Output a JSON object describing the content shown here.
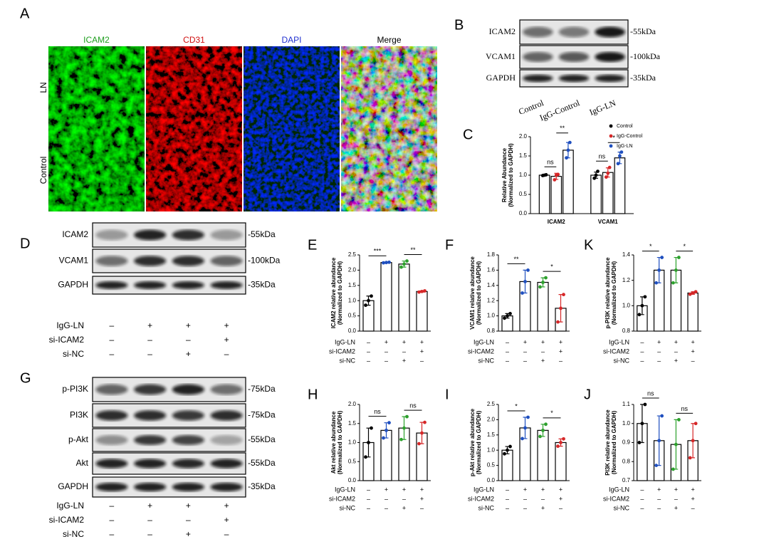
{
  "panels": {
    "A": {
      "label": "A",
      "columns": [
        "ICAM2",
        "CD31",
        "DAPI",
        "Merge"
      ],
      "rows": [
        "LN",
        "Control"
      ]
    },
    "B": {
      "label": "B",
      "bands": [
        {
          "name": "ICAM2",
          "size": "-55kDa"
        },
        {
          "name": "VCAM1",
          "size": "-100kDa"
        },
        {
          "name": "GAPDH",
          "size": "-35kDa"
        }
      ],
      "lanes": [
        "Control",
        "IgG-Control",
        "IgG-LN"
      ]
    },
    "D": {
      "label": "D",
      "bands": [
        {
          "name": "ICAM2",
          "size": "-55kDa"
        },
        {
          "name": "VCAM1",
          "size": "-100kDa"
        },
        {
          "name": "GAPDH",
          "size": "-35kDa"
        }
      ],
      "conditions": [
        {
          "label": "IgG-LN",
          "signs": [
            "–",
            "+",
            "+",
            "+"
          ]
        },
        {
          "label": "si-ICAM2",
          "signs": [
            "–",
            "–",
            "–",
            "+"
          ]
        },
        {
          "label": "si-NC",
          "signs": [
            "–",
            "–",
            "+",
            "–"
          ]
        }
      ]
    },
    "G": {
      "label": "G",
      "bands": [
        {
          "name": "p-PI3K",
          "size": "-75kDa"
        },
        {
          "name": "PI3K",
          "size": "-75kDa"
        },
        {
          "name": "p-Akt",
          "size": "-55kDa"
        },
        {
          "name": "Akt",
          "size": "-55kDa"
        },
        {
          "name": "GAPDH",
          "size": "-35kDa"
        }
      ],
      "conditions": [
        {
          "label": "IgG-LN",
          "signs": [
            "–",
            "+",
            "+",
            "+"
          ]
        },
        {
          "label": "si-ICAM2",
          "signs": [
            "–",
            "–",
            "–",
            "+"
          ]
        },
        {
          "label": "si-NC",
          "signs": [
            "–",
            "–",
            "+",
            "–"
          ]
        }
      ]
    }
  },
  "chart_data": [
    {
      "type": "grouped-bar",
      "panel": "C",
      "ylabel": [
        "Relative Abundance",
        "(Normalized to GAPDH)"
      ],
      "categories": [
        "ICAM2",
        "VCAM1"
      ],
      "series": [
        {
          "name": "Control",
          "color": "#000000",
          "values": [
            1.0,
            1.0
          ],
          "errors": [
            0.02,
            0.08
          ],
          "points": [
            [
              0.99,
              1.0,
              1.01
            ],
            [
              0.92,
              1.0,
              1.1
            ]
          ]
        },
        {
          "name": "IgG-Control",
          "color": "#d62728",
          "values": [
            0.97,
            1.07
          ],
          "errors": [
            0.08,
            0.12
          ],
          "points": [
            [
              0.88,
              1.0,
              1.02
            ],
            [
              0.95,
              1.05,
              1.2
            ]
          ]
        },
        {
          "name": "IgG-LN",
          "color": "#1f4fbf",
          "values": [
            1.65,
            1.45
          ],
          "errors": [
            0.2,
            0.15
          ],
          "points": [
            [
              1.45,
              1.65,
              1.85
            ],
            [
              1.3,
              1.5,
              1.6
            ]
          ]
        }
      ],
      "significance": [
        [
          "ns",
          "**"
        ],
        [
          "ns",
          "*"
        ]
      ],
      "legend": "upper right",
      "ylim": [
        0,
        2
      ],
      "yticks": [
        {
          "value": 0,
          "label": "0.0"
        },
        0.5,
        {
          "value": 1,
          "label": "1.0"
        },
        1.5,
        {
          "value": 2,
          "label": "2.0"
        }
      ]
    },
    {
      "type": "bar",
      "panel": "E",
      "ylabel": [
        "ICAM2 relative abundance",
        "(Normalized to GAPDH)"
      ],
      "colors": [
        "#000000",
        "#1f4fbf",
        "#2ca02c",
        "#d62728"
      ],
      "values": [
        1.0,
        2.25,
        2.2,
        1.3
      ],
      "errors": [
        0.15,
        0.01,
        0.1,
        0.02
      ],
      "points": [
        [
          0.85,
          1.0,
          1.15
        ],
        [
          2.24,
          2.25,
          2.26
        ],
        [
          2.1,
          2.2,
          2.3
        ],
        [
          1.28,
          1.3,
          1.32
        ]
      ],
      "significance": [
        "***",
        "**"
      ],
      "ylim": [
        0,
        2.5
      ],
      "yticks": [
        {
          "value": 0,
          "label": "0.0"
        },
        0.5,
        {
          "value": 1,
          "label": "1.0"
        },
        1.5,
        {
          "value": 2,
          "label": "2.0"
        },
        2.5
      ],
      "conditions": [
        {
          "label": "IgG-LN",
          "signs": [
            "–",
            "+",
            "+",
            "+"
          ]
        },
        {
          "label": "si-ICAM2",
          "signs": [
            "–",
            "–",
            "–",
            "+"
          ]
        },
        {
          "label": "si-NC",
          "signs": [
            "–",
            "–",
            "+",
            "–"
          ]
        }
      ]
    },
    {
      "type": "bar",
      "panel": "F",
      "ylabel": [
        "VCAM1 relative abundance",
        "(Normalized to GAPDH)"
      ],
      "colors": [
        "#000000",
        "#1f4fbf",
        "#2ca02c",
        "#d62728"
      ],
      "values": [
        1.0,
        1.45,
        1.44,
        1.1
      ],
      "errors": [
        0.03,
        0.15,
        0.06,
        0.18
      ],
      "points": [
        [
          0.97,
          1.0,
          1.03
        ],
        [
          1.3,
          1.45,
          1.6
        ],
        [
          1.38,
          1.44,
          1.5
        ],
        [
          0.92,
          1.1,
          1.28
        ]
      ],
      "significance": [
        "**",
        "*"
      ],
      "ylim": [
        0.8,
        1.8
      ],
      "yticks": [
        0.8,
        {
          "value": 1,
          "label": "1.0"
        },
        1.2,
        1.4,
        1.6,
        1.8
      ],
      "conditions": [
        {
          "label": "IgG-LN",
          "signs": [
            "–",
            "+",
            "+",
            "+"
          ]
        },
        {
          "label": "si-ICAM2",
          "signs": [
            "–",
            "–",
            "–",
            "+"
          ]
        },
        {
          "label": "si-NC",
          "signs": [
            "–",
            "–",
            "+",
            "–"
          ]
        }
      ]
    },
    {
      "type": "bar",
      "panel": "K",
      "ylabel": [
        "p-PI3K relative abundance",
        "(Normalized to GAPDH)"
      ],
      "colors": [
        "#000000",
        "#1f4fbf",
        "#2ca02c",
        "#d62728"
      ],
      "values": [
        1.0,
        1.28,
        1.28,
        1.1
      ],
      "errors": [
        0.07,
        0.1,
        0.1,
        0.01
      ],
      "points": [
        [
          0.93,
          1.0,
          1.07
        ],
        [
          1.18,
          1.28,
          1.38
        ],
        [
          1.18,
          1.28,
          1.38
        ],
        [
          1.09,
          1.1,
          1.11
        ]
      ],
      "significance": [
        "*",
        "*"
      ],
      "ylim": [
        0.8,
        1.4
      ],
      "yticks": [
        0.8,
        {
          "value": 1,
          "label": "1.0"
        },
        1.2,
        1.4
      ],
      "conditions": [
        {
          "label": "IgG-LN",
          "signs": [
            "–",
            "+",
            "+",
            "+"
          ]
        },
        {
          "label": "si-ICAM2",
          "signs": [
            "–",
            "–",
            "–",
            "+"
          ]
        },
        {
          "label": "si-NC",
          "signs": [
            "–",
            "–",
            "+",
            "–"
          ]
        }
      ]
    },
    {
      "type": "bar",
      "panel": "H",
      "ylabel": [
        "Akt relative abundance",
        "(Normalized to GAPDH)"
      ],
      "colors": [
        "#000000",
        "#1f4fbf",
        "#2ca02c",
        "#d62728"
      ],
      "values": [
        1.0,
        1.32,
        1.38,
        1.25
      ],
      "errors": [
        0.38,
        0.2,
        0.3,
        0.28
      ],
      "points": [
        [
          0.62,
          1.0,
          1.38
        ],
        [
          1.12,
          1.32,
          1.52
        ],
        [
          1.08,
          1.38,
          1.68
        ],
        [
          0.97,
          1.25,
          1.53
        ]
      ],
      "significance": [
        "ns",
        "ns"
      ],
      "ylim": [
        0,
        2
      ],
      "yticks": [
        {
          "value": 0,
          "label": "0.0"
        },
        0.5,
        {
          "value": 1,
          "label": "1.0"
        },
        1.5,
        {
          "value": 2,
          "label": "2.0"
        }
      ],
      "conditions": [
        {
          "label": "IgG-LN",
          "signs": [
            "–",
            "+",
            "+",
            "+"
          ]
        },
        {
          "label": "si-ICAM2",
          "signs": [
            "–",
            "–",
            "–",
            "+"
          ]
        },
        {
          "label": "si-NC",
          "signs": [
            "–",
            "–",
            "+",
            "–"
          ]
        }
      ]
    },
    {
      "type": "bar",
      "panel": "I",
      "ylabel": [
        "p-Akt relative abundance",
        "(Normalized to GAPDH)"
      ],
      "colors": [
        "#000000",
        "#1f4fbf",
        "#2ca02c",
        "#d62728"
      ],
      "values": [
        1.0,
        1.73,
        1.65,
        1.25
      ],
      "errors": [
        0.12,
        0.35,
        0.2,
        0.12
      ],
      "points": [
        [
          0.88,
          1.0,
          1.12
        ],
        [
          1.38,
          1.73,
          2.08
        ],
        [
          1.45,
          1.65,
          1.85
        ],
        [
          1.13,
          1.25,
          1.37
        ]
      ],
      "significance": [
        "*",
        "*"
      ],
      "ylim": [
        0,
        2.5
      ],
      "yticks": [
        {
          "value": 0,
          "label": "0.0"
        },
        0.5,
        {
          "value": 1,
          "label": "1.0"
        },
        1.5,
        {
          "value": 2,
          "label": "2.0"
        },
        2.5
      ],
      "conditions": [
        {
          "label": "IgG-LN",
          "signs": [
            "–",
            "+",
            "+",
            "+"
          ]
        },
        {
          "label": "si-ICAM2",
          "signs": [
            "–",
            "–",
            "–",
            "+"
          ]
        },
        {
          "label": "si-NC",
          "signs": [
            "–",
            "–",
            "+",
            "–"
          ]
        }
      ]
    },
    {
      "type": "bar",
      "panel": "J",
      "ylabel": [
        "PI3K relative abundance",
        "(Normalized to GAPDH)"
      ],
      "colors": [
        "#000000",
        "#1f4fbf",
        "#2ca02c",
        "#d62728"
      ],
      "values": [
        1.0,
        0.91,
        0.89,
        0.91
      ],
      "errors": [
        0.1,
        0.13,
        0.13,
        0.09
      ],
      "points": [
        [
          0.9,
          1.0,
          1.1
        ],
        [
          0.78,
          0.91,
          1.04
        ],
        [
          0.76,
          0.89,
          1.02
        ],
        [
          0.82,
          0.91,
          1.0
        ]
      ],
      "significance": [
        "ns",
        "ns"
      ],
      "ylim": [
        0.7,
        1.1
      ],
      "yticks": [
        0.7,
        0.8,
        0.9,
        {
          "value": 1,
          "label": "1.0"
        },
        1.1
      ],
      "conditions": [
        {
          "label": "IgG-LN",
          "signs": [
            "–",
            "+",
            "+",
            "+"
          ]
        },
        {
          "label": "si-ICAM2",
          "signs": [
            "–",
            "–",
            "–",
            "+"
          ]
        },
        {
          "label": "si-NC",
          "signs": [
            "–",
            "–",
            "+",
            "–"
          ]
        }
      ]
    }
  ]
}
